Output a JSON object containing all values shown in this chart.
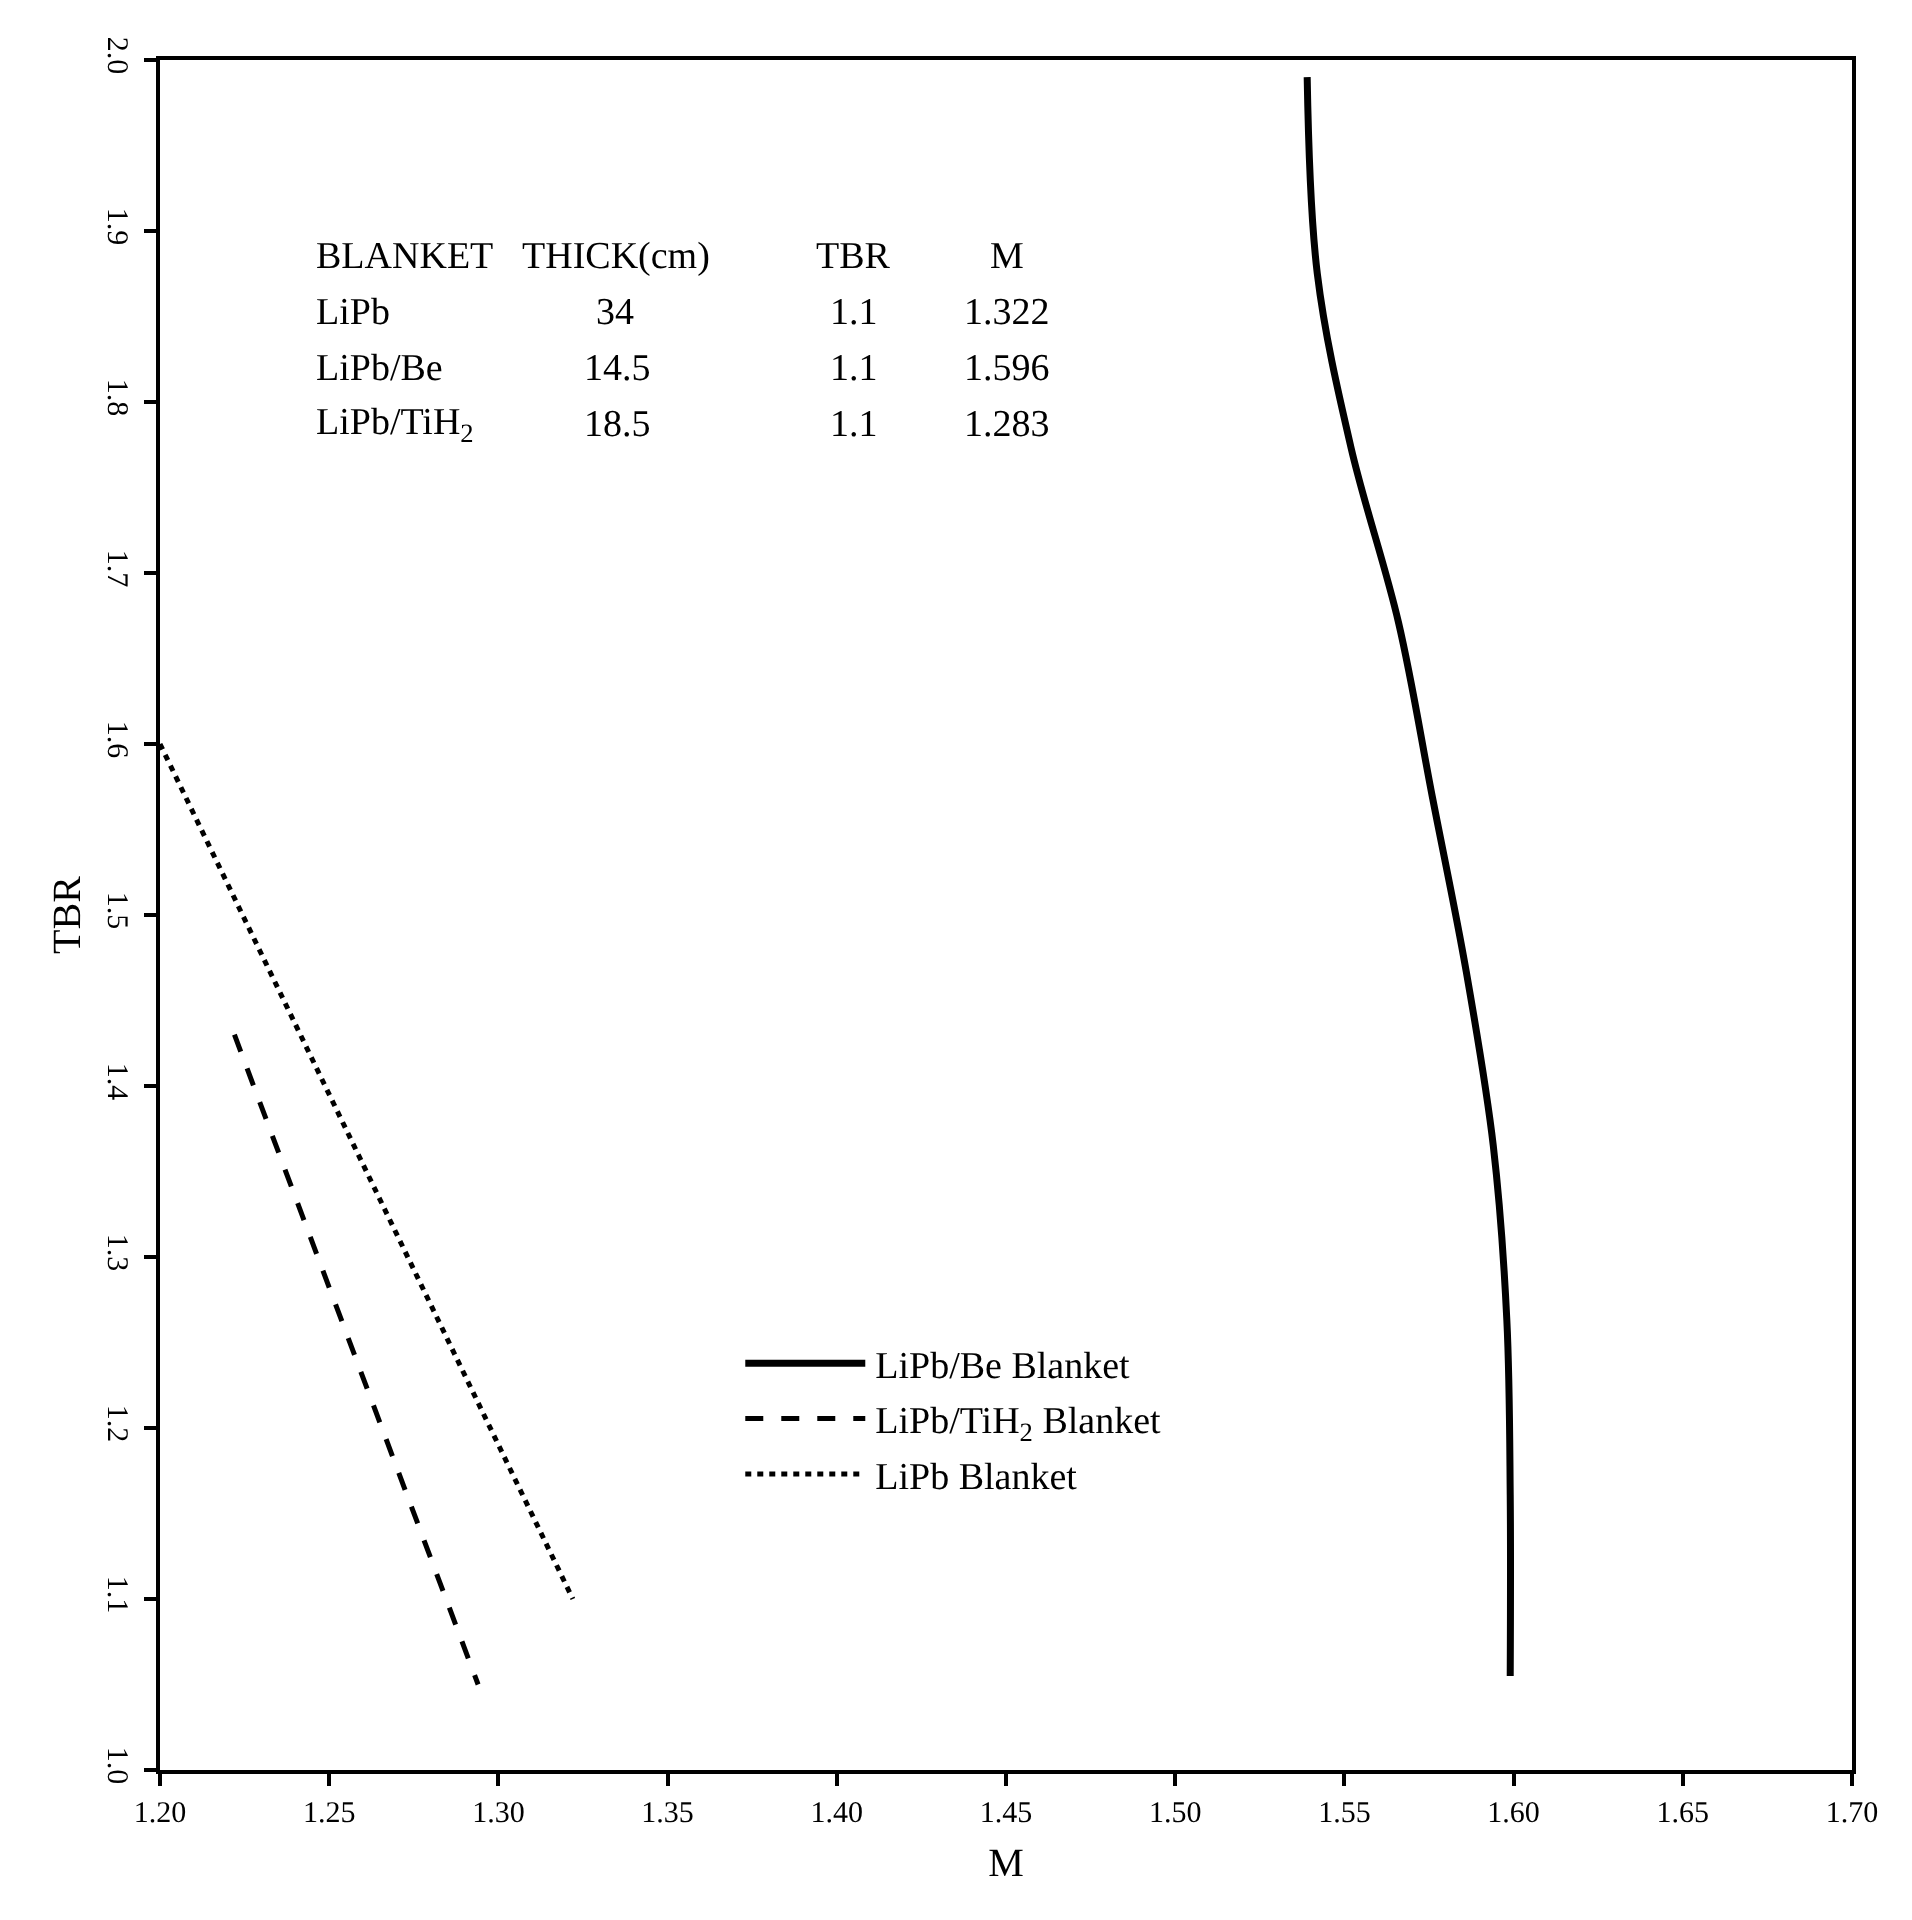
{
  "chart_data": {
    "type": "line",
    "xlabel": "M",
    "ylabel": "TBR",
    "xlim": [
      1.2,
      1.7
    ],
    "xticks": [
      {
        "value": 1.2,
        "label": "1.20"
      },
      {
        "value": 1.25,
        "label": "1.25"
      },
      {
        "value": 1.3,
        "label": "1.30"
      },
      {
        "value": 1.35,
        "label": "1.35"
      },
      {
        "value": 1.4,
        "label": "1.40"
      },
      {
        "value": 1.45,
        "label": "1.45"
      },
      {
        "value": 1.5,
        "label": "1.50"
      },
      {
        "value": 1.55,
        "label": "1.55"
      },
      {
        "value": 1.6,
        "label": "1.60"
      },
      {
        "value": 1.65,
        "label": "1.65"
      },
      {
        "value": 1.7,
        "label": "1.70"
      }
    ],
    "ylim": [
      1.0,
      2.0
    ],
    "yticks": [
      {
        "value": 1.0,
        "label": "1.0"
      },
      1.1,
      1.2,
      1.3,
      1.4,
      1.5,
      1.6,
      1.7,
      1.8,
      1.9,
      {
        "value": 2.0,
        "label": "2.0"
      }
    ],
    "legend": "bottom",
    "marker": "none",
    "series": [
      {
        "name": "LiPb/Be Blanket",
        "color": "#000000",
        "line_style": "solid",
        "x": [
          1.539,
          1.542,
          1.552,
          1.566,
          1.576,
          1.586,
          1.594,
          1.598,
          1.599,
          1.599
        ],
        "values": [
          1.99,
          1.875,
          1.773,
          1.671,
          1.569,
          1.467,
          1.365,
          1.263,
          1.161,
          1.055
        ]
      },
      {
        "name": "LiPb/TiH$_{2}$ Blanket",
        "color": "#000000",
        "line_style": "dashed",
        "x": [
          1.222,
          1.294
        ],
        "values": [
          1.43,
          1.05
        ]
      },
      {
        "name": "LiPb Blanket",
        "color": "#000000",
        "line_style": "dotted",
        "x": [
          1.2,
          1.322
        ],
        "values": [
          1.6,
          1.1
        ]
      }
    ],
    "annotations": [
      "BLANKET",
      "THICK(cm)",
      "TBR",
      "M",
      "LiPb",
      "34",
      "1.1",
      "1.322",
      "LiPb/Be",
      "14.5",
      "1.1",
      "1.596",
      "LiPb/TiH$_{2}$",
      "18.5",
      "1.1",
      "1.283"
    ]
  }
}
